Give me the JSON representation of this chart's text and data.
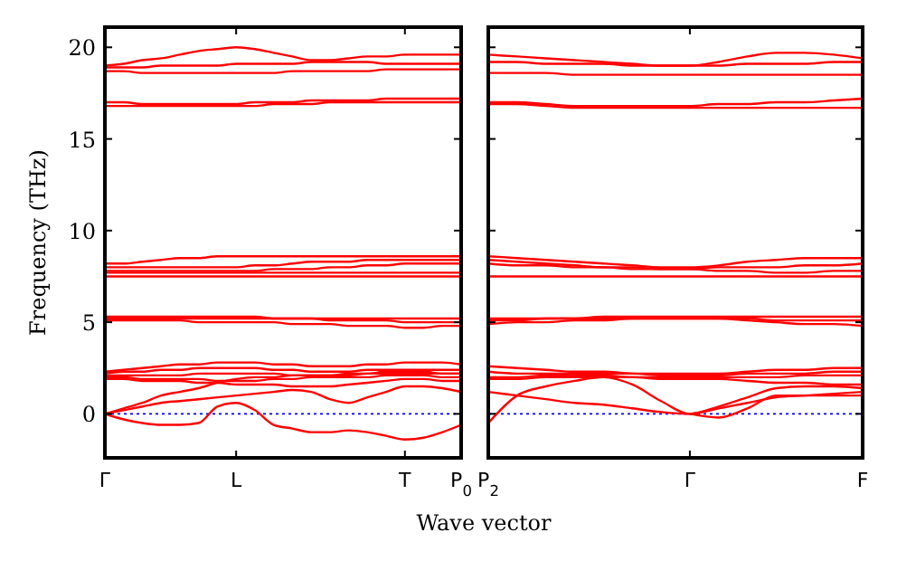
{
  "chart_data": [
    {
      "type": "line",
      "xlabel": "Wave vector",
      "ylabel": "Frequency (THz)",
      "categories": [
        "Γ",
        null,
        null,
        null,
        null,
        null,
        null,
        "L",
        null,
        null,
        null,
        null,
        null,
        null,
        null,
        null,
        "T",
        null,
        null,
        "P$_{0}$"
      ],
      "ylim": [
        -2.4,
        21.1
      ],
      "yticks": [
        0,
        5,
        10,
        15,
        20
      ],
      "line_style": "solid",
      "marker": "none",
      "ref_lines": [
        {
          "axis": "y",
          "value": 0,
          "color": "#0000ff",
          "line_style": "dotted"
        }
      ],
      "series": [
        {
          "color": "#ff0000",
          "values": [
            19.0,
            19.1,
            19.3,
            19.4,
            19.6,
            19.8,
            19.9,
            20.0,
            19.9,
            19.7,
            19.5,
            19.3,
            19.3,
            19.4,
            19.5,
            19.5,
            19.6,
            19.6,
            19.6,
            19.6
          ]
        },
        {
          "color": "#ff0000",
          "values": [
            18.9,
            18.9,
            18.9,
            19.0,
            19.0,
            19.0,
            19.0,
            19.1,
            19.1,
            19.1,
            19.1,
            19.2,
            19.2,
            19.2,
            19.2,
            19.1,
            19.1,
            19.1,
            19.1,
            19.1
          ]
        },
        {
          "color": "#ff0000",
          "values": [
            18.7,
            18.7,
            18.6,
            18.6,
            18.6,
            18.6,
            18.6,
            18.6,
            18.6,
            18.6,
            18.7,
            18.7,
            18.7,
            18.7,
            18.7,
            18.8,
            18.8,
            18.8,
            18.8,
            18.8
          ]
        },
        {
          "color": "#ff0000",
          "values": [
            17.0,
            17.0,
            16.9,
            16.9,
            16.9,
            16.9,
            16.9,
            16.9,
            17.0,
            17.0,
            17.0,
            17.1,
            17.1,
            17.1,
            17.1,
            17.2,
            17.2,
            17.2,
            17.2,
            17.2
          ]
        },
        {
          "color": "#ff0000",
          "values": [
            16.8,
            16.8,
            16.8,
            16.8,
            16.8,
            16.8,
            16.8,
            16.8,
            16.8,
            16.9,
            16.9,
            16.9,
            17.0,
            17.0,
            17.0,
            17.0,
            17.0,
            17.0,
            17.0,
            17.0
          ]
        },
        {
          "color": "#ff0000",
          "values": [
            8.2,
            8.2,
            8.3,
            8.4,
            8.5,
            8.5,
            8.6,
            8.6,
            8.6,
            8.6,
            8.6,
            8.6,
            8.6,
            8.6,
            8.6,
            8.6,
            8.6,
            8.6,
            8.6,
            8.6
          ]
        },
        {
          "color": "#ff0000",
          "values": [
            8.0,
            8.0,
            8.0,
            8.0,
            8.0,
            8.0,
            8.0,
            8.0,
            8.1,
            8.1,
            8.2,
            8.3,
            8.3,
            8.3,
            8.4,
            8.4,
            8.4,
            8.4,
            8.4,
            8.4
          ]
        },
        {
          "color": "#ff0000",
          "values": [
            7.8,
            7.8,
            7.8,
            7.8,
            7.8,
            7.8,
            7.8,
            7.8,
            7.8,
            7.9,
            7.9,
            7.9,
            8.0,
            8.0,
            8.1,
            8.1,
            8.2,
            8.2,
            8.2,
            8.2
          ]
        },
        {
          "color": "#ff0000",
          "values": [
            7.5,
            7.5,
            7.5,
            7.5,
            7.5,
            7.5,
            7.5,
            7.5,
            7.5,
            7.5,
            7.5,
            7.5,
            7.5,
            7.5,
            7.5,
            7.5,
            7.5,
            7.5,
            7.5,
            7.5
          ]
        },
        {
          "color": "#ff0000",
          "values": [
            7.7,
            7.7,
            7.7,
            7.7,
            7.7,
            7.7,
            7.7,
            7.7,
            7.7,
            7.7,
            7.7,
            7.7,
            7.7,
            7.7,
            7.7,
            7.7,
            7.7,
            7.7,
            7.7,
            7.7
          ]
        },
        {
          "color": "#ff0000",
          "values": [
            5.3,
            5.3,
            5.3,
            5.3,
            5.3,
            5.3,
            5.3,
            5.3,
            5.3,
            5.2,
            5.2,
            5.2,
            5.1,
            5.1,
            5.1,
            5.1,
            5.0,
            5.0,
            5.0,
            5.0
          ]
        },
        {
          "color": "#ff0000",
          "values": [
            5.1,
            5.1,
            5.1,
            5.1,
            5.1,
            5.0,
            5.0,
            5.0,
            5.0,
            5.0,
            4.9,
            4.9,
            4.9,
            4.8,
            4.8,
            4.8,
            4.7,
            4.7,
            4.8,
            4.8
          ]
        },
        {
          "color": "#ff0000",
          "values": [
            5.2,
            5.2,
            5.2,
            5.2,
            5.2,
            5.2,
            5.2,
            5.2,
            5.2,
            5.2,
            5.2,
            5.2,
            5.2,
            5.2,
            5.2,
            5.2,
            5.2,
            5.2,
            5.2,
            5.2
          ]
        },
        {
          "color": "#ff0000",
          "values": [
            2.3,
            2.4,
            2.5,
            2.6,
            2.7,
            2.7,
            2.8,
            2.8,
            2.8,
            2.7,
            2.7,
            2.6,
            2.6,
            2.6,
            2.7,
            2.7,
            2.8,
            2.8,
            2.8,
            2.7
          ]
        },
        {
          "color": "#ff0000",
          "values": [
            2.2,
            2.3,
            2.3,
            2.4,
            2.4,
            2.5,
            2.5,
            2.5,
            2.5,
            2.4,
            2.4,
            2.3,
            2.3,
            2.3,
            2.4,
            2.4,
            2.4,
            2.4,
            2.4,
            2.4
          ]
        },
        {
          "color": "#ff0000",
          "values": [
            2.1,
            2.1,
            2.1,
            2.1,
            2.1,
            2.2,
            2.2,
            2.2,
            2.2,
            2.2,
            2.1,
            2.1,
            2.1,
            2.1,
            2.2,
            2.2,
            2.2,
            2.2,
            2.2,
            2.2
          ]
        },
        {
          "color": "#ff0000",
          "values": [
            2.0,
            2.0,
            1.9,
            1.9,
            1.9,
            1.9,
            1.8,
            1.8,
            1.8,
            1.9,
            1.9,
            2.0,
            2.0,
            2.0,
            2.0,
            2.1,
            2.1,
            2.1,
            2.0,
            2.0
          ]
        },
        {
          "color": "#ff0000",
          "values": [
            1.9,
            1.9,
            1.8,
            1.8,
            1.8,
            1.7,
            1.7,
            1.6,
            1.6,
            1.6,
            1.5,
            1.5,
            1.5,
            1.6,
            1.7,
            1.8,
            1.9,
            1.9,
            1.8,
            1.8
          ]
        },
        {
          "color": "#ff0000",
          "values": [
            0,
            0.3,
            0.6,
            1.0,
            1.2,
            1.4,
            1.7,
            1.9,
            2.0,
            2.0,
            2.1,
            2.1,
            2.1,
            2.2,
            2.2,
            2.3,
            2.3,
            2.3,
            2.2,
            2.2
          ]
        },
        {
          "color": "#ff0000",
          "values": [
            0,
            0.2,
            0.4,
            0.6,
            0.7,
            0.8,
            0.9,
            1.0,
            1.1,
            1.2,
            1.3,
            1.2,
            0.8,
            0.6,
            0.9,
            1.2,
            1.5,
            1.5,
            1.4,
            1.2
          ]
        },
        {
          "color": "#ff0000",
          "values": [
            0,
            -0.3,
            -0.5,
            -0.6,
            -0.6,
            -0.5,
            0.4,
            0.6,
            0.2,
            -0.6,
            -0.8,
            -1.0,
            -1.0,
            -0.9,
            -1.0,
            -1.2,
            -1.4,
            -1.3,
            -1.0,
            -0.6
          ]
        }
      ]
    },
    {
      "type": "line",
      "categories": [
        "P$_{2}$",
        null,
        null,
        null,
        null,
        null,
        null,
        "Γ",
        null,
        null,
        null,
        null,
        null,
        "F"
      ],
      "ylim": [
        -2.4,
        21.1
      ],
      "yticks": [
        0,
        5,
        10,
        15,
        20
      ],
      "tick_labels": "x",
      "line_style": "solid",
      "marker": "none",
      "ref_lines": [
        {
          "axis": "y",
          "value": 0,
          "color": "#0000ff",
          "line_style": "dotted"
        }
      ],
      "series": [
        {
          "color": "#ff0000",
          "values": [
            19.6,
            19.5,
            19.4,
            19.3,
            19.2,
            19.1,
            19.0,
            19.0,
            19.2,
            19.5,
            19.7,
            19.7,
            19.6,
            19.4
          ]
        },
        {
          "color": "#ff0000",
          "values": [
            19.2,
            19.2,
            19.1,
            19.1,
            19.1,
            19.0,
            19.0,
            19.0,
            19.0,
            19.1,
            19.1,
            19.1,
            19.2,
            19.2
          ]
        },
        {
          "color": "#ff0000",
          "values": [
            18.6,
            18.6,
            18.6,
            18.5,
            18.5,
            18.5,
            18.5,
            18.5,
            18.5,
            18.5,
            18.5,
            18.5,
            18.5,
            18.5
          ]
        },
        {
          "color": "#ff0000",
          "values": [
            17.0,
            17.0,
            16.9,
            16.8,
            16.8,
            16.8,
            16.8,
            16.8,
            16.9,
            16.9,
            17.0,
            17.0,
            17.1,
            17.2
          ]
        },
        {
          "color": "#ff0000",
          "values": [
            16.9,
            16.9,
            16.8,
            16.7,
            16.7,
            16.7,
            16.7,
            16.7,
            16.7,
            16.7,
            16.7,
            16.7,
            16.7,
            16.7
          ]
        },
        {
          "color": "#ff0000",
          "values": [
            8.6,
            8.5,
            8.4,
            8.3,
            8.2,
            8.1,
            8.0,
            8.0,
            8.1,
            8.3,
            8.4,
            8.5,
            8.5,
            8.5
          ]
        },
        {
          "color": "#ff0000",
          "values": [
            8.4,
            8.3,
            8.2,
            8.1,
            8.0,
            8.0,
            7.9,
            7.9,
            8.0,
            8.0,
            8.0,
            8.1,
            8.1,
            8.2
          ]
        },
        {
          "color": "#ff0000",
          "values": [
            8.2,
            8.1,
            8.1,
            8.0,
            8.0,
            7.9,
            7.9,
            7.9,
            7.8,
            7.8,
            7.7,
            7.7,
            7.8,
            7.8
          ]
        },
        {
          "color": "#ff0000",
          "values": [
            7.5,
            7.5,
            7.5,
            7.5,
            7.5,
            7.5,
            7.5,
            7.5,
            7.5,
            7.5,
            7.5,
            7.5,
            7.5,
            7.5
          ]
        },
        {
          "color": "#ff0000",
          "values": [
            4.9,
            5.0,
            5.0,
            5.1,
            5.1,
            5.2,
            5.2,
            5.2,
            5.2,
            5.1,
            5.0,
            4.9,
            4.9,
            4.8
          ]
        },
        {
          "color": "#ff0000",
          "values": [
            5.1,
            5.1,
            5.2,
            5.2,
            5.2,
            5.2,
            5.2,
            5.2,
            5.2,
            5.2,
            5.1,
            5.1,
            5.1,
            5.1
          ]
        },
        {
          "color": "#ff0000",
          "values": [
            5.2,
            5.2,
            5.2,
            5.2,
            5.3,
            5.3,
            5.3,
            5.3,
            5.3,
            5.3,
            5.3,
            5.3,
            5.3,
            5.3
          ]
        },
        {
          "color": "#ff0000",
          "values": [
            2.6,
            2.5,
            2.4,
            2.3,
            2.3,
            2.2,
            2.2,
            2.2,
            2.2,
            2.3,
            2.4,
            2.4,
            2.5,
            2.5
          ]
        },
        {
          "color": "#ff0000",
          "values": [
            2.3,
            2.2,
            2.2,
            2.2,
            2.2,
            2.2,
            2.1,
            2.1,
            2.1,
            2.2,
            2.2,
            2.2,
            2.3,
            2.3
          ]
        },
        {
          "color": "#ff0000",
          "values": [
            2.0,
            2.0,
            2.1,
            2.1,
            2.1,
            2.0,
            2.0,
            2.0,
            2.0,
            2.0,
            2.0,
            2.1,
            2.1,
            2.1
          ]
        },
        {
          "color": "#ff0000",
          "values": [
            1.9,
            1.9,
            2.0,
            2.0,
            2.0,
            2.0,
            1.9,
            1.9,
            1.9,
            1.8,
            1.7,
            1.7,
            1.6,
            1.6
          ]
        },
        {
          "color": "#ff0000",
          "values": [
            -0.5,
            1.0,
            1.5,
            1.8,
            2.0,
            1.6,
            0.7,
            0,
            0.4,
            0.9,
            1.4,
            1.5,
            1.5,
            1.4
          ]
        },
        {
          "color": "#ff0000",
          "values": [
            1.2,
            1.0,
            0.8,
            0.6,
            0.5,
            0.3,
            0.1,
            0,
            0.3,
            0.6,
            0.9,
            1.0,
            1.1,
            1.2
          ]
        },
        {
          "color": "#ff0000",
          "values": [
            null,
            null,
            null,
            null,
            null,
            null,
            null,
            0,
            -0.2,
            0.3,
            1.0,
            1.0,
            1.0,
            1.0
          ]
        }
      ]
    }
  ]
}
